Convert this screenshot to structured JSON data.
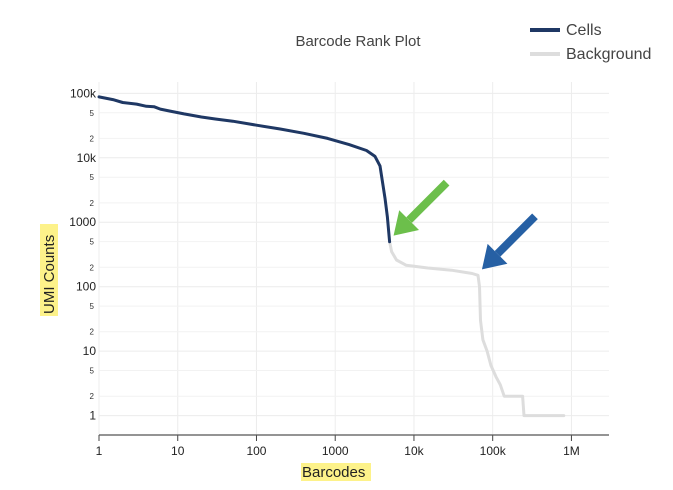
{
  "chart_data": {
    "type": "line",
    "title": "Barcode Rank Plot",
    "xlabel": "Barcodes",
    "ylabel": "UMI Counts",
    "x_scale": "log",
    "y_scale": "log",
    "xlim": [
      1,
      3000000
    ],
    "ylim": [
      0.5,
      150000
    ],
    "grid": true,
    "legend_position": "top-right",
    "x_ticks": [
      {
        "value": 1,
        "label": "1"
      },
      {
        "value": 10,
        "label": "10"
      },
      {
        "value": 100,
        "label": "100"
      },
      {
        "value": 1000,
        "label": "1000"
      },
      {
        "value": 10000,
        "label": "10k"
      },
      {
        "value": 100000,
        "label": "100k"
      },
      {
        "value": 1000000,
        "label": "1M"
      }
    ],
    "y_ticks": [
      {
        "value": 1,
        "label": "1"
      },
      {
        "value": 10,
        "label": "10"
      },
      {
        "value": 100,
        "label": "100"
      },
      {
        "value": 1000,
        "label": "1000"
      },
      {
        "value": 10000,
        "label": "10k"
      },
      {
        "value": 100000,
        "label": "100k"
      }
    ],
    "y_minor_ticks": [
      {
        "value": 2,
        "label": "2"
      },
      {
        "value": 5,
        "label": "5"
      },
      {
        "value": 20,
        "label": "2"
      },
      {
        "value": 50,
        "label": "5"
      },
      {
        "value": 200,
        "label": "2"
      },
      {
        "value": 500,
        "label": "5"
      },
      {
        "value": 2000,
        "label": "2"
      },
      {
        "value": 5000,
        "label": "5"
      },
      {
        "value": 20000,
        "label": "2"
      },
      {
        "value": 50000,
        "label": "5"
      }
    ],
    "series": [
      {
        "name": "Cells",
        "color": "#1f3864",
        "points": [
          [
            1,
            88000
          ],
          [
            1.5,
            80000
          ],
          [
            2,
            72000
          ],
          [
            3,
            68000
          ],
          [
            4,
            63000
          ],
          [
            5,
            62000
          ],
          [
            6,
            57000
          ],
          [
            8,
            53000
          ],
          [
            12,
            48000
          ],
          [
            20,
            43000
          ],
          [
            30,
            40000
          ],
          [
            50,
            37000
          ],
          [
            100,
            32000
          ],
          [
            200,
            28000
          ],
          [
            400,
            24000
          ],
          [
            800,
            20000
          ],
          [
            1500,
            16000
          ],
          [
            2500,
            13000
          ],
          [
            3200,
            10500
          ],
          [
            3700,
            7500
          ],
          [
            3950,
            4500
          ],
          [
            4300,
            2300
          ],
          [
            4600,
            1200
          ],
          [
            4900,
            500
          ]
        ]
      },
      {
        "name": "Background",
        "color": "#dddddd",
        "points": [
          [
            4900,
            500
          ],
          [
            5200,
            350
          ],
          [
            6000,
            260
          ],
          [
            8000,
            215
          ],
          [
            15000,
            195
          ],
          [
            30000,
            180
          ],
          [
            55000,
            160
          ],
          [
            65000,
            150
          ],
          [
            68000,
            100
          ],
          [
            70000,
            30
          ],
          [
            75000,
            15
          ],
          [
            85000,
            10
          ],
          [
            95000,
            6
          ],
          [
            110000,
            4
          ],
          [
            125000,
            3
          ],
          [
            140000,
            2
          ],
          [
            155000,
            2
          ],
          [
            240000,
            2
          ],
          [
            250000,
            1
          ],
          [
            800000,
            1
          ]
        ]
      }
    ],
    "annotations": [
      {
        "type": "arrow",
        "color": "#6cbf4b",
        "target_x": 4900,
        "target_y": 500
      },
      {
        "type": "arrow",
        "color": "#2660a4",
        "target_x": 65000,
        "target_y": 150
      }
    ],
    "highlight_color": "#fdf28a"
  }
}
